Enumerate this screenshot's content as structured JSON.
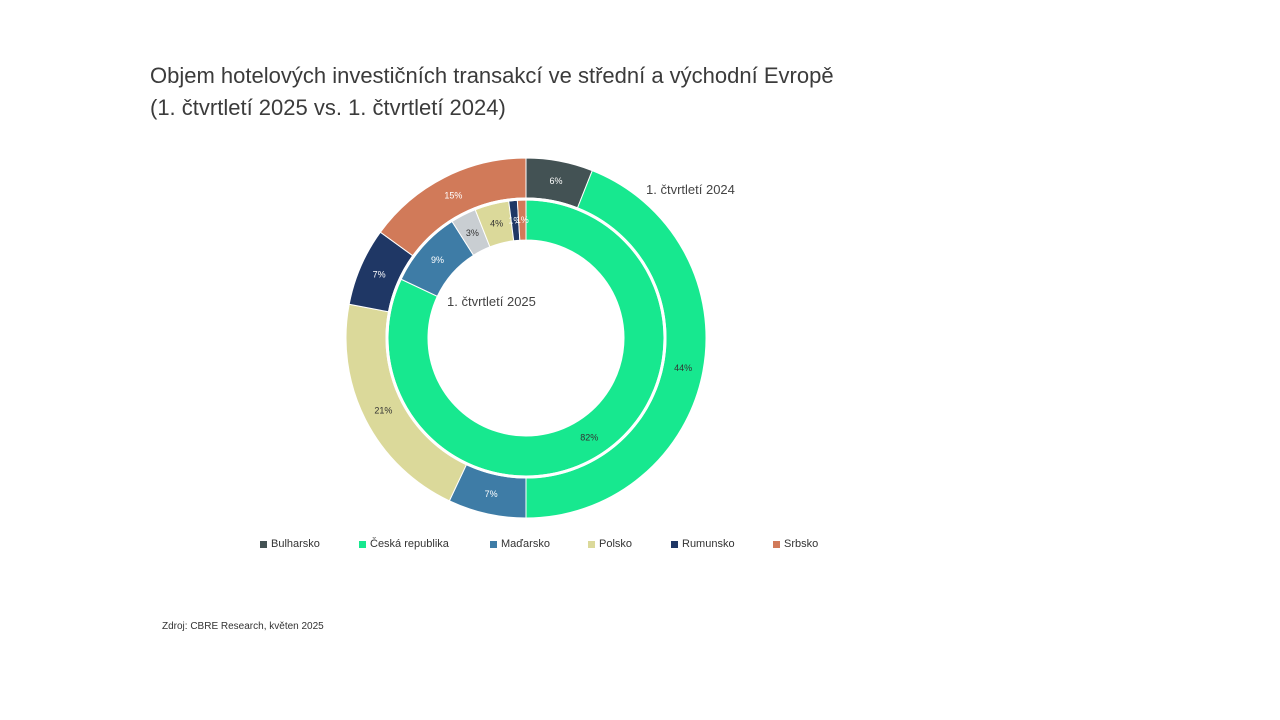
{
  "title_line1": "Objem hotelových investičních transakcí ve střední a východní Evropě",
  "title_line2": "(1. čtvrtletí 2025 vs. 1. čtvrtletí 2024)",
  "source": "Zdroj: CBRE Research, květen 2025",
  "chart_data": {
    "type": "pie",
    "subtype": "donut",
    "rings": [
      {
        "name": "1. čtvrtletí 2024",
        "position": "outer",
        "values": [
          6,
          44,
          7,
          21,
          7,
          15
        ],
        "labels": [
          "6%",
          "44%",
          "7%",
          "21%",
          "7%",
          "15%"
        ]
      },
      {
        "name": "1. čtvrtletí 2025",
        "position": "inner",
        "values": [
          0,
          82,
          9,
          4,
          1,
          1,
          3
        ],
        "labels": [
          "",
          "82%",
          "9%",
          "4%",
          "1%",
          "1%",
          "3%"
        ]
      }
    ],
    "categories": [
      "Bulharsko",
      "Česká republika",
      "Maďarsko",
      "Polsko",
      "Rumunsko",
      "Srbsko"
    ],
    "inner_order_note_categories": [
      "Bulharsko",
      "Česká republika",
      "Maďarsko",
      "Polsko",
      "Rumunsko",
      "Srbsko",
      ""
    ],
    "colors": {
      "Bulharsko": "#435254",
      "Česká republika": "#17e88f",
      "Maďarsko": "#3e7ca6",
      "Polsko": "#dbd99a",
      "Rumunsko": "#1f3765",
      "Srbsko": "#d17a59",
      "other": "#c9ced2"
    },
    "legend_position": "bottom"
  },
  "legend": [
    {
      "name": "Bulharsko",
      "color": "#435254"
    },
    {
      "name": "Česká republika",
      "color": "#17e88f"
    },
    {
      "name": "Maďarsko",
      "color": "#3e7ca6"
    },
    {
      "name": "Polsko",
      "color": "#dbd99a"
    },
    {
      "name": "Rumunsko",
      "color": "#1f3765"
    },
    {
      "name": "Srbsko",
      "color": "#d17a59"
    }
  ]
}
